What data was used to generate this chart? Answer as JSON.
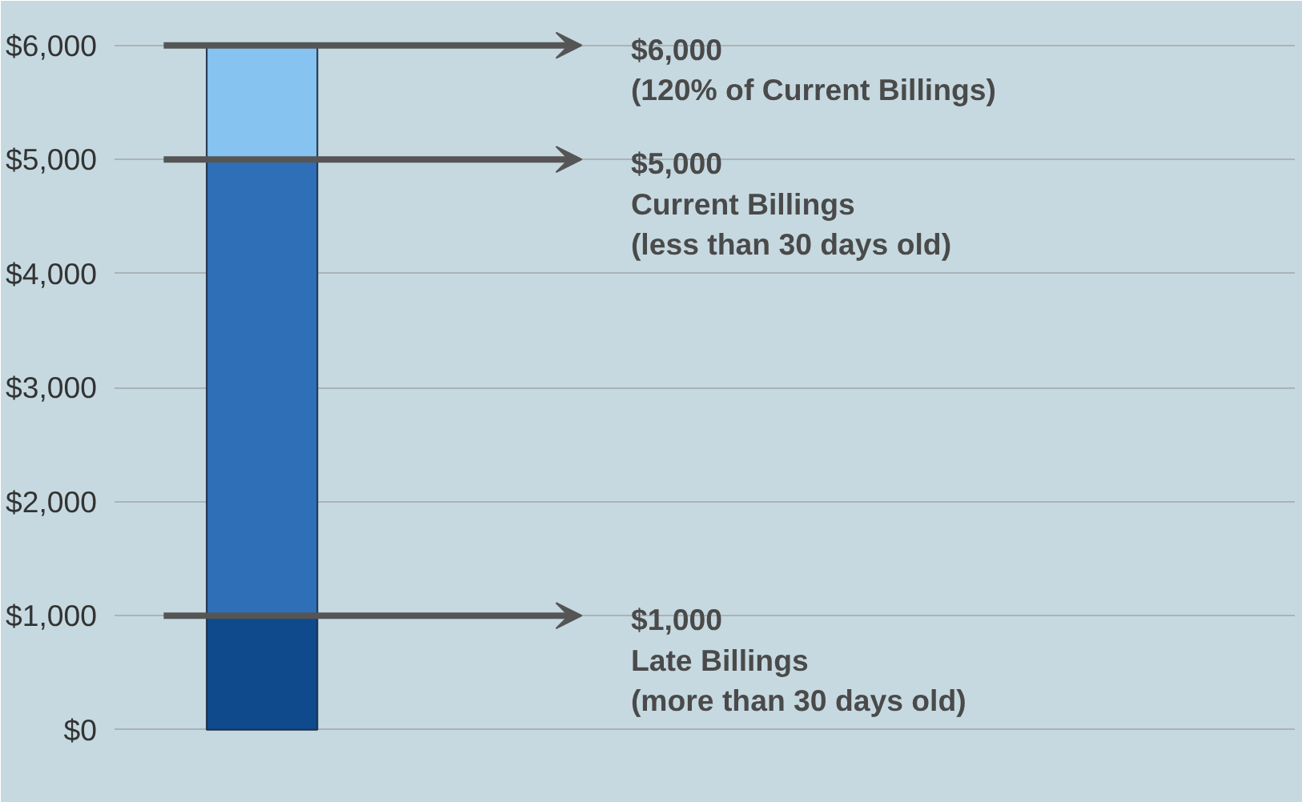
{
  "chart_data": {
    "type": "bar",
    "stacked": true,
    "categories": [
      null
    ],
    "series": [
      {
        "color": "#0e4a8c",
        "values": [
          1000
        ]
      },
      {
        "color": "#2f6fb8",
        "values": [
          4000
        ]
      },
      {
        "color": "#86c3f0",
        "values": [
          1000
        ]
      }
    ],
    "ylim": [
      -500,
      6250
    ],
    "yticks": [
      {
        "value": 0,
        "label": "$0"
      },
      {
        "value": 1000,
        "label": "$1,000"
      },
      {
        "value": 2000,
        "label": "$2,000"
      },
      {
        "value": 3000,
        "label": "$3,000"
      },
      {
        "value": 4000,
        "label": "$4,000"
      },
      {
        "value": 5000,
        "label": "$5,000"
      },
      {
        "value": 6000,
        "label": "$6,000"
      }
    ],
    "grid": "y",
    "annotations": [
      "$6,000\n(120% of Current Billings)",
      "$5,000\nCurrent Billings\n(less than 30 days old)",
      "$1,000\nLate Billings\n(more than 30 days old)"
    ]
  }
}
